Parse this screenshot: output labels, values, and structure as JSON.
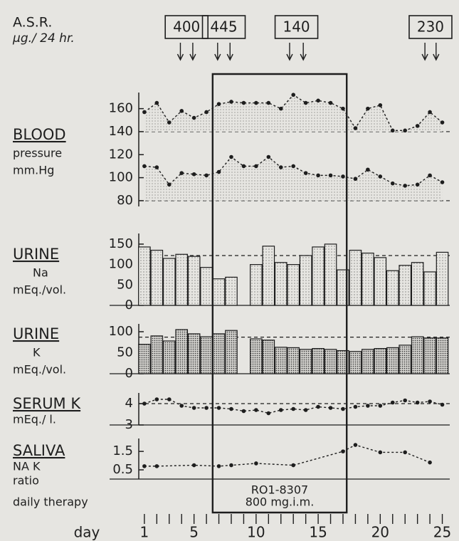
{
  "header": {
    "lines": [
      "A.S.R.",
      "μg./ 24 hr."
    ]
  },
  "doses": [
    {
      "label": "400",
      "days": [
        3.9,
        4.9
      ]
    },
    {
      "label": "445",
      "days": [
        6.9,
        7.9
      ]
    },
    {
      "label": "140",
      "days": [
        12.7,
        13.8
      ]
    },
    {
      "label": "230",
      "days": [
        23.6,
        24.5
      ]
    }
  ],
  "therapy": {
    "lines": [
      "RO1-8307",
      "800 mg.i.m."
    ],
    "label": "daily therapy",
    "days": [
      6.5,
      17.3
    ]
  },
  "chart_data": [
    {
      "type": "line",
      "label_lines": [
        "BLOOD",
        "pressure",
        "mm.Hg"
      ],
      "x": [
        1,
        2,
        3,
        4,
        5,
        6,
        7,
        8,
        9,
        10,
        11,
        12,
        13,
        14,
        15,
        16,
        17,
        18,
        19,
        20,
        21,
        22,
        23,
        24,
        25
      ],
      "ylim": [
        75,
        174
      ],
      "yticks": [
        80,
        100,
        120,
        140,
        160
      ],
      "reference_lines": [
        140,
        80
      ],
      "series": [
        {
          "color": "#1e1e1e",
          "fill_to": 140,
          "values": [
            157,
            165,
            148,
            158,
            152,
            157,
            164,
            166,
            165,
            165,
            165,
            160,
            172,
            165,
            167,
            165,
            160,
            143,
            160,
            163,
            141,
            141,
            145,
            157,
            148
          ]
        },
        {
          "color": "#1e1e1e",
          "fill_to": 80,
          "values": [
            110,
            109,
            94,
            104,
            103,
            102,
            105,
            118,
            110,
            110,
            118,
            109,
            110,
            104,
            102,
            102,
            101,
            99,
            107,
            101,
            95,
            93,
            94,
            102,
            96
          ]
        }
      ]
    },
    {
      "type": "bar",
      "label_lines": [
        "URINE",
        "Na",
        "mEq./vol."
      ],
      "x": [
        1,
        2,
        3,
        4,
        5,
        6,
        7,
        8,
        9,
        10,
        11,
        12,
        13,
        14,
        15,
        16,
        17,
        18,
        19,
        20,
        21,
        22,
        23,
        24,
        25
      ],
      "values": [
        143,
        135,
        115,
        125,
        120,
        93,
        65,
        69,
        null,
        100,
        145,
        105,
        100,
        122,
        143,
        150,
        87,
        135,
        128,
        117,
        85,
        98,
        105,
        82,
        130
      ],
      "ylim": [
        0,
        176
      ],
      "yticks": [
        0,
        50,
        100,
        150
      ],
      "reference_lines": [
        122
      ],
      "pattern": "light"
    },
    {
      "type": "bar",
      "label_lines": [
        "URINE",
        "K",
        "mEq./vol."
      ],
      "x": [
        1,
        2,
        3,
        4,
        5,
        6,
        7,
        8,
        9,
        10,
        11,
        12,
        13,
        14,
        15,
        16,
        17,
        18,
        19,
        20,
        21,
        22,
        23,
        24,
        25
      ],
      "values": [
        70,
        90,
        78,
        105,
        95,
        88,
        95,
        103,
        null,
        83,
        80,
        63,
        62,
        58,
        60,
        58,
        55,
        53,
        58,
        60,
        62,
        68,
        88,
        85,
        85
      ],
      "ylim": [
        0,
        118.6
      ],
      "yticks": [
        0,
        50,
        100
      ],
      "reference_lines": [
        87
      ],
      "pattern": "dense"
    },
    {
      "type": "line",
      "label_lines": [
        "SERUM K",
        "mEq./ l."
      ],
      "x": [
        1,
        2,
        3,
        4,
        5,
        6,
        7,
        8,
        9,
        10,
        11,
        12,
        13,
        14,
        15,
        16,
        17,
        18,
        19,
        20,
        21,
        22,
        23,
        24,
        25
      ],
      "values": [
        4.0,
        4.2,
        4.2,
        3.9,
        3.8,
        3.8,
        3.8,
        3.75,
        3.65,
        3.7,
        3.55,
        3.7,
        3.75,
        3.7,
        3.85,
        3.8,
        3.75,
        3.85,
        3.9,
        3.9,
        4.05,
        4.15,
        4.05,
        4.1,
        3.95
      ],
      "ylim": [
        3,
        4.5
      ],
      "yticks": [
        3,
        4
      ],
      "reference_lines": [
        4
      ]
    },
    {
      "type": "line",
      "label_lines": [
        "SALIVA",
        "NA K",
        "ratio"
      ],
      "x": [
        1,
        2,
        5,
        7,
        8,
        10,
        13,
        17,
        18,
        20,
        22,
        24
      ],
      "values": [
        0.7,
        0.7,
        0.75,
        0.7,
        0.75,
        0.85,
        0.75,
        1.5,
        1.85,
        1.45,
        1.45,
        0.9
      ],
      "ylim": [
        0,
        2.2
      ],
      "yticks": [
        0.5,
        1.5
      ]
    }
  ],
  "day_axis": {
    "label": "day",
    "xlim": [
      -1,
      25.6
    ],
    "xticks": [
      1,
      5,
      10,
      15,
      20,
      25
    ],
    "minor_xticks": [
      1,
      2,
      3,
      4,
      5,
      6,
      7,
      8,
      9,
      10,
      11,
      12,
      13,
      14,
      15,
      16,
      17,
      18,
      19,
      20,
      21,
      22,
      23,
      24,
      25
    ]
  }
}
